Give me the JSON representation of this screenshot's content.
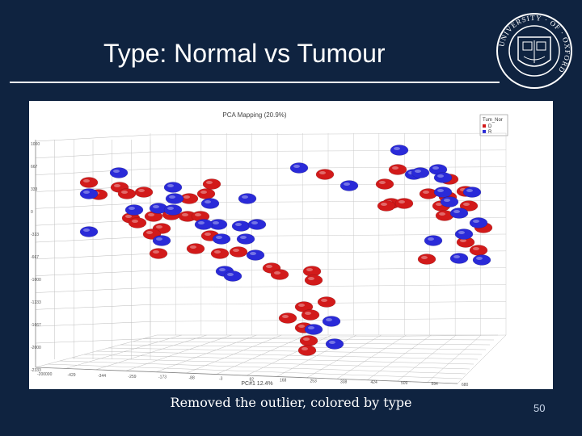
{
  "slide": {
    "title": "Type: Normal vs Tumour",
    "caption": "Removed the outlier, colored by type",
    "page_number": "50",
    "background_color": "#0f2340"
  },
  "logo": {
    "text": "UNIVERSITY · OF · OXFORD",
    "icon": "oxford-crest-icon"
  },
  "chart_data": {
    "type": "scatter",
    "title": "PCA Mapping (20.9%)",
    "xlabel": "PC#1 12.4%",
    "legend": {
      "title": "Tum_Nor",
      "placement": "top-right",
      "entries": [
        {
          "label": "D",
          "color": "#d21a1a"
        },
        {
          "label": "R",
          "color": "#2a2ad8"
        }
      ]
    },
    "x_ticks": [
      "-200000",
      "-429",
      "-344",
      "-259",
      "-173",
      "-88",
      "-3",
      "82",
      "168",
      "253",
      "338",
      "424",
      "509",
      "594",
      "680"
    ],
    "y_ticks": [
      "1000",
      "667",
      "333",
      "0",
      "-333",
      "-667",
      "-1000",
      "-1333",
      "-1667",
      "-2000",
      "-2333"
    ],
    "series": [
      {
        "name": "D",
        "color": "#d21a1a",
        "points": [
          [
            110,
            226
          ],
          [
            122,
            241
          ],
          [
            148,
            232
          ],
          [
            157,
            240
          ],
          [
            178,
            238
          ],
          [
            162,
            270
          ],
          [
            170,
            276
          ],
          [
            190,
            268
          ],
          [
            200,
            283
          ],
          [
            196,
            314
          ],
          [
            212,
            266
          ],
          [
            232,
            268
          ],
          [
            248,
            268
          ],
          [
            234,
            246
          ],
          [
            255,
            240
          ],
          [
            262,
            228
          ],
          [
            242,
            308
          ],
          [
            272,
            314
          ],
          [
            295,
            312
          ],
          [
            260,
            292
          ],
          [
            336,
            332
          ],
          [
            346,
            340
          ],
          [
            386,
            336
          ],
          [
            388,
            347
          ],
          [
            356,
            394
          ],
          [
            376,
            380
          ],
          [
            404,
            374
          ],
          [
            384,
            390
          ],
          [
            376,
            406
          ],
          [
            382,
            422
          ],
          [
            380,
            434
          ],
          [
            402,
            216
          ],
          [
            476,
            228
          ],
          [
            492,
            210
          ],
          [
            484,
            252
          ],
          [
            500,
            252
          ],
          [
            478,
            255
          ],
          [
            528,
            321
          ],
          [
            556,
            222
          ],
          [
            554,
            244
          ],
          [
            530,
            240
          ],
          [
            546,
            255
          ],
          [
            576,
            237
          ],
          [
            550,
            267
          ],
          [
            580,
            255
          ],
          [
            598,
            282
          ],
          [
            576,
            300
          ],
          [
            592,
            310
          ],
          [
            188,
            290
          ]
        ]
      },
      {
        "name": "R",
        "color": "#2a2ad8",
        "points": [
          [
            147,
            214
          ],
          [
            110,
            240
          ],
          [
            110,
            287
          ],
          [
            166,
            260
          ],
          [
            196,
            258
          ],
          [
            214,
            232
          ],
          [
            216,
            246
          ],
          [
            214,
            260
          ],
          [
            270,
            278
          ],
          [
            252,
            278
          ],
          [
            298,
            280
          ],
          [
            304,
            296
          ],
          [
            274,
            296
          ],
          [
            318,
            278
          ],
          [
            316,
            316
          ],
          [
            278,
            336
          ],
          [
            288,
            342
          ],
          [
            306,
            246
          ],
          [
            260,
            252
          ],
          [
            370,
            208
          ],
          [
            432,
            230
          ],
          [
            494,
            186
          ],
          [
            512,
            216
          ],
          [
            520,
            214
          ],
          [
            542,
            210
          ],
          [
            548,
            220
          ],
          [
            548,
            238
          ],
          [
            556,
            250
          ],
          [
            536,
            298
          ],
          [
            568,
            264
          ],
          [
            592,
            276
          ],
          [
            574,
            290
          ],
          [
            568,
            320
          ],
          [
            596,
            322
          ],
          [
            388,
            408
          ],
          [
            410,
            398
          ],
          [
            414,
            426
          ],
          [
            200,
            298
          ],
          [
            584,
            238
          ]
        ]
      }
    ]
  }
}
